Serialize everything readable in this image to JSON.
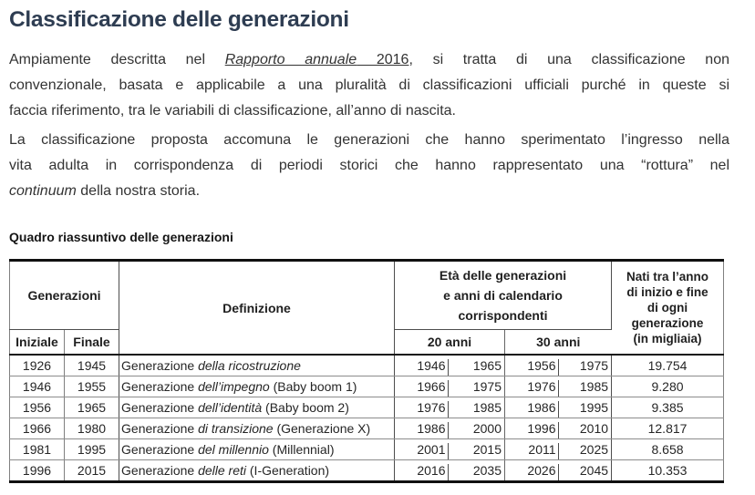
{
  "page": {
    "title": "Classificazione delle generazioni",
    "para1": {
      "line1_before": "Ampiamente descritta nel ",
      "link_italic": "Rapporto annuale",
      "link_year": " 2016",
      "line1_after": ", si tratta di una classificazione non",
      "line2": "convenzionale, basata e applicabile a una pluralità di classificazioni ufficiali purché in queste si",
      "line3": "faccia riferimento, tra le variabili di classificazione, all’anno di nascita."
    },
    "para2": {
      "line1": "La classificazione proposta accomuna le generazioni che hanno sperimentato l’ingresso nella",
      "line2": "vita adulta in corrispondenza di periodi storici che hanno rappresentato una “rottura” nel",
      "line3_italic": "continuum",
      "line3_after": " della nostra storia."
    },
    "table_caption": "Quadro riassuntivo delle generazioni"
  },
  "table": {
    "headers": {
      "generazioni": "Generazioni",
      "iniziale": "Iniziale",
      "finale": "Finale",
      "definizione": "Definizione",
      "eta": "Età delle generazioni\ne anni di calendario\ncorrispondenti",
      "anni20": "20 anni",
      "anni30": "30 anni",
      "nati": "Nati tra l’anno\ndi inizio e fine\ndi ogni\ngenerazione\n(in migliaia)"
    },
    "rows": [
      {
        "iniziale": "1926",
        "finale": "1945",
        "def_prefix": "Generazione ",
        "def_italic": "della ricostruzione",
        "def_suffix": "",
        "y20a": "1946",
        "y20b": "1965",
        "y30a": "1956",
        "y30b": "1975",
        "nati": "19.754"
      },
      {
        "iniziale": "1946",
        "finale": "1955",
        "def_prefix": "Generazione ",
        "def_italic": "dell’impegno",
        "def_suffix": " (Baby boom 1)",
        "y20a": "1966",
        "y20b": "1975",
        "y30a": "1976",
        "y30b": "1985",
        "nati": "9.280"
      },
      {
        "iniziale": "1956",
        "finale": "1965",
        "def_prefix": "Generazione ",
        "def_italic": "dell’identità",
        "def_suffix": " (Baby boom 2)",
        "y20a": "1976",
        "y20b": "1985",
        "y30a": "1986",
        "y30b": "1995",
        "nati": "9.385"
      },
      {
        "iniziale": "1966",
        "finale": "1980",
        "def_prefix": "Generazione ",
        "def_italic": "di transizione",
        "def_suffix": " (Generazione X)",
        "y20a": "1986",
        "y20b": "2000",
        "y30a": "1996",
        "y30b": "2010",
        "nati": "12.817"
      },
      {
        "iniziale": "1981",
        "finale": "1995",
        "def_prefix": "Generazione ",
        "def_italic": "del millennio",
        "def_suffix": " (Millennial)",
        "y20a": "2001",
        "y20b": "2015",
        "y30a": "2011",
        "y30b": "2025",
        "nati": "8.658"
      },
      {
        "iniziale": "1996",
        "finale": "2015",
        "def_prefix": "Generazione ",
        "def_italic": "delle reti",
        "def_suffix": " (I-Generation)",
        "y20a": "2016",
        "y20b": "2035",
        "y30a": "2026",
        "y30b": "2045",
        "nati": "10.353"
      }
    ]
  }
}
